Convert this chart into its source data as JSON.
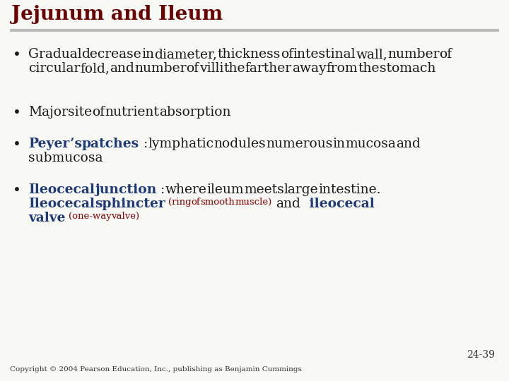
{
  "title": "Jejunum and Ileum",
  "title_color": "#6B0000",
  "title_fontsize": 20,
  "bg_color": "#F8F8F5",
  "line_color": "#BBBBBB",
  "slide_number": "24-39",
  "copyright": "Copyright © 2004 Pearson Education, Inc., publishing as Benjamin Cummings",
  "bullet_color": "#1A1A1A",
  "blue_color": "#1F3A7A",
  "red_color": "#8B0000",
  "bullet_fontsize": 13.5,
  "small_fontsize": 9.5
}
